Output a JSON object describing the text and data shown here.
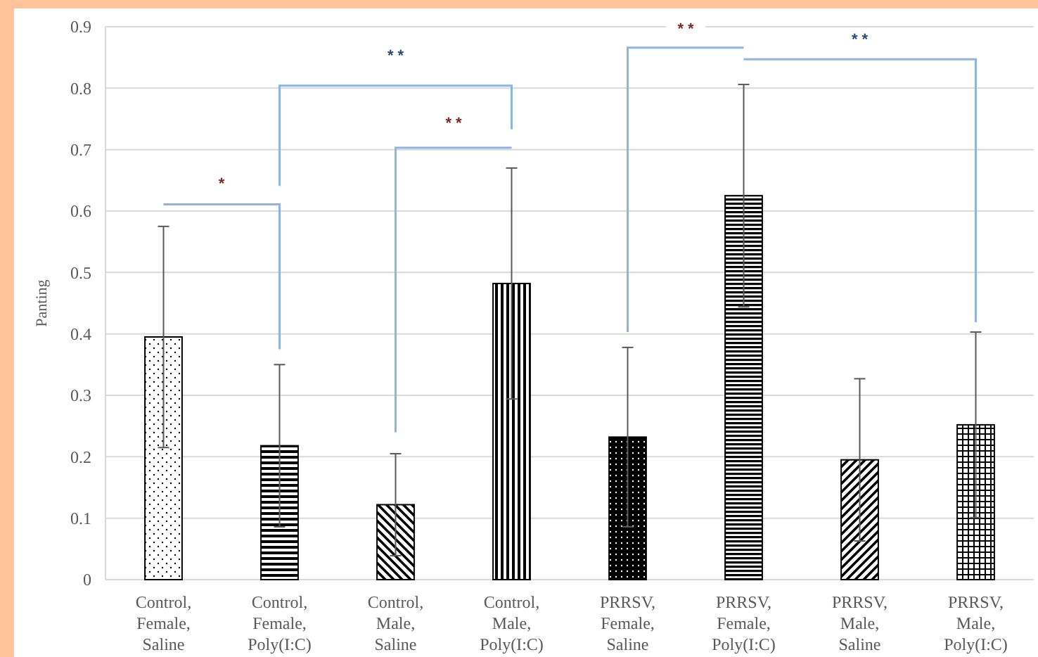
{
  "chart_data": {
    "type": "bar",
    "ylabel": "Panting",
    "categories": [
      "Control,\nFemale,\nSaline",
      "Control,\nFemale,\nPoly(I:C)",
      "Control,\nMale,\nSaline",
      "Control,\nMale,\nPoly(I:C)",
      "PRRSV,\nFemale,\nSaline",
      "PRRSV,\nFemale,\nPoly(I:C)",
      "PRRSV,\nMale,\nSaline",
      "PRRSV,\nMale,\nPoly(I:C)"
    ],
    "values": [
      0.395,
      0.218,
      0.122,
      0.482,
      0.232,
      0.625,
      0.195,
      0.252
    ],
    "errors": [
      0.18,
      0.132,
      0.083,
      0.188,
      0.146,
      0.181,
      0.132,
      0.151
    ],
    "color": "#000000",
    "ylim": [
      0,
      0.9
    ],
    "yticks": [
      0,
      0.1,
      0.2,
      0.3,
      0.4,
      0.5,
      0.6,
      0.7,
      0.8,
      0.9
    ],
    "grid": "y",
    "annotations": [
      "*",
      "* *",
      "* *",
      "* *",
      "* *"
    ]
  }
}
